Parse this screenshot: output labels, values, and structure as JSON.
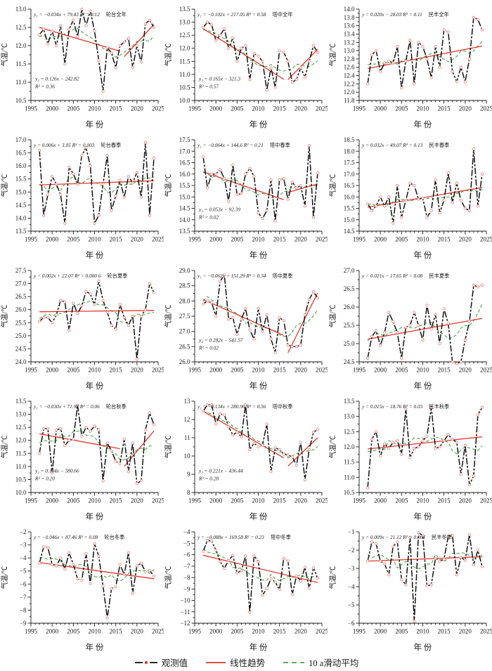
{
  "figure": {
    "xlabel": "年 份",
    "ylabel": "气温/℃",
    "xlim": [
      1995,
      2025
    ],
    "xtick_step": 5,
    "xtick_minor_step": 1,
    "year_start": 1997,
    "year_end": 2024
  },
  "legend": {
    "observed": "观测值",
    "trend": "线性趋势",
    "moving_avg": "10 a滑动平均"
  },
  "colors": {
    "observed": "#111111",
    "marker": "#ec8b85",
    "trend": "#e5352b",
    "moving_avg": "#46a546"
  },
  "chart_data": [
    {
      "type": "line",
      "title": "轮台全年",
      "station": "轮台全年",
      "equation": "y₁ = −0.034x + 79.43 R² = 0.12",
      "equation2": [
        "y₂ = 0.126x − 242.82",
        "R² = 0.36"
      ],
      "ylim": [
        10.5,
        13.0
      ],
      "ystep": 0.5,
      "ydec": 1,
      "values": [
        12.3,
        12.45,
        12.05,
        12.4,
        12.0,
        12.55,
        11.5,
        12.45,
        12.7,
        12.25,
        13.0,
        12.55,
        12.95,
        12.4,
        11.6,
        10.75,
        11.95,
        11.8,
        11.4,
        12.0,
        12.1,
        12.2,
        11.4,
        12.0,
        11.55,
        12.6,
        12.7,
        12.5
      ],
      "trend": [
        [
          1997,
          12.5,
          2016,
          11.85
        ],
        [
          2017,
          11.7,
          2024,
          12.58
        ]
      ]
    },
    {
      "type": "line",
      "title": "塔中全年",
      "station": "塔中全年",
      "equation": "y₁ = −0.102x + 217.05 R² = 0.58",
      "equation2": [
        "y₂ = 0.165x − 321.3",
        "R² = 0.57"
      ],
      "ylim": [
        10.0,
        13.5
      ],
      "ystep": 0.5,
      "ydec": 1,
      "values": [
        12.8,
        13.0,
        12.9,
        12.3,
        12.5,
        12.75,
        12.0,
        12.4,
        11.5,
        12.0,
        12.1,
        10.8,
        11.8,
        11.7,
        11.5,
        10.4,
        11.25,
        10.5,
        11.9,
        11.85,
        11.5,
        10.7,
        10.8,
        11.25,
        10.9,
        11.5,
        12.1,
        11.85
      ],
      "trend": [
        [
          1997,
          12.75,
          2016,
          10.81
        ],
        [
          2017,
          10.8,
          2024,
          11.96
        ]
      ]
    },
    {
      "type": "line",
      "title": "民丰全年",
      "station": "民丰全年",
      "equation": "y = 0.020x − 28.03 R² = 0.11",
      "equation2": null,
      "ylim": [
        11.8,
        14.0
      ],
      "ystep": 0.2,
      "ydec": 1,
      "values": [
        12.2,
        12.9,
        13.0,
        12.5,
        12.7,
        12.75,
        12.7,
        13.1,
        12.1,
        12.75,
        13.25,
        12.2,
        13.2,
        13.1,
        12.8,
        12.35,
        13.1,
        12.6,
        13.5,
        13.45,
        12.5,
        12.25,
        12.6,
        12.25,
        12.8,
        13.8,
        13.75,
        13.5
      ],
      "trend": [
        [
          1997,
          12.57,
          2024,
          13.11
        ]
      ]
    },
    {
      "type": "line",
      "title": "轮台春季",
      "station": "轮台春季",
      "equation": "y = 0.006x + 3.05 R² = 0.003",
      "equation2": null,
      "ylim": [
        13.5,
        17.0
      ],
      "ystep": 0.5,
      "ydec": 1,
      "values": [
        16.6,
        14.1,
        14.9,
        15.6,
        15.3,
        14.9,
        13.8,
        15.95,
        15.7,
        15.3,
        16.4,
        16.7,
        16.0,
        13.8,
        14.1,
        15.3,
        16.4,
        14.3,
        14.85,
        15.45,
        14.8,
        15.6,
        15.35,
        15.75,
        14.8,
        16.9,
        14.1,
        16.3
      ],
      "trend": [
        [
          1997,
          15.27,
          2024,
          15.43
        ]
      ]
    },
    {
      "type": "line",
      "title": "塔中春季",
      "station": "塔中春季",
      "equation": "y₁ = −0.064x + 144.6 R² = 0.21",
      "equation2": [
        "y₂ = 0.053x − 92.39",
        "R² = 0.02"
      ],
      "ylim": [
        13.5,
        17.5
      ],
      "ystep": 0.5,
      "ydec": 1,
      "values": [
        16.75,
        15.4,
        16.0,
        16.0,
        16.2,
        15.8,
        14.8,
        16.4,
        15.1,
        15.15,
        16.0,
        16.25,
        15.9,
        14.3,
        14.05,
        14.4,
        15.75,
        13.95,
        15.75,
        15.8,
        14.9,
        15.65,
        15.4,
        15.5,
        14.6,
        17.25,
        14.1,
        16.05
      ],
      "trend": [
        [
          1997,
          16.1,
          2016,
          14.88
        ],
        [
          2017,
          15.2,
          2024,
          15.57
        ]
      ]
    },
    {
      "type": "line",
      "title": "民丰春季",
      "station": "民丰春季",
      "equation": "y = 0.032x − 49.07 R² = 0.13",
      "equation2": null,
      "ylim": [
        14.5,
        18.5
      ],
      "ystep": 0.5,
      "ydec": 1,
      "values": [
        15.7,
        15.4,
        15.6,
        16.0,
        15.6,
        16.0,
        14.85,
        16.5,
        15.1,
        15.85,
        16.6,
        16.5,
        15.9,
        15.95,
        15.1,
        15.4,
        16.75,
        15.3,
        15.85,
        17.05,
        15.75,
        16.6,
        15.85,
        15.5,
        15.4,
        18.1,
        15.6,
        17.0
      ],
      "trend": [
        [
          1997,
          15.55,
          2024,
          16.41
        ]
      ]
    },
    {
      "type": "line",
      "title": "轮台夏季",
      "station": "轮台夏季",
      "equation": "y = 0.002x + 22.07 R² = 0.000 6",
      "equation2": null,
      "ylim": [
        24.0,
        27.5
      ],
      "ystep": 0.5,
      "ydec": 1,
      "values": [
        25.55,
        25.7,
        25.7,
        25.5,
        25.8,
        26.35,
        26.3,
        25.2,
        26.25,
        25.85,
        26.15,
        26.7,
        26.6,
        26.2,
        27.1,
        26.35,
        25.9,
        25.4,
        25.25,
        26.2,
        25.7,
        25.4,
        25.75,
        24.1,
        25.75,
        26.0,
        27.0,
        26.65
      ],
      "trend": [
        [
          1997,
          25.92,
          2024,
          25.97
        ]
      ]
    },
    {
      "type": "line",
      "title": "塔中夏季",
      "station": "塔中夏季",
      "equation": "y₁ = −0.062x + 151.29 R² = 0.34",
      "equation2": [
        "y₂ = 0.282x − 541.57",
        "R² = 0.02"
      ],
      "ylim": [
        26.0,
        29.0
      ],
      "ystep": 0.5,
      "ydec": 1,
      "values": [
        27.9,
        28.0,
        27.95,
        27.5,
        28.65,
        28.85,
        27.4,
        27.45,
        26.9,
        27.4,
        27.75,
        27.05,
        26.75,
        27.75,
        27.0,
        27.55,
        26.75,
        26.3,
        27.45,
        27.35,
        26.55,
        26.5,
        26.5,
        26.55,
        27.55,
        28.05,
        28.3,
        28.1
      ],
      "trend": [
        [
          1997,
          28.05,
          2016,
          26.87
        ],
        [
          2017,
          26.3,
          2024,
          28.27
        ]
      ]
    },
    {
      "type": "line",
      "title": "民丰夏季",
      "station": "民丰夏季",
      "equation": "y = 0.021x − 17.65 R² = 0.08",
      "equation2": null,
      "ylim": [
        24.5,
        27.0
      ],
      "ystep": 0.5,
      "ydec": 1,
      "values": [
        24.6,
        25.2,
        25.35,
        24.95,
        25.3,
        25.85,
        25.6,
        25.3,
        24.6,
        25.45,
        25.5,
        25.85,
        25.5,
        25.1,
        26.05,
        25.4,
        25.8,
        25.0,
        25.95,
        25.55,
        24.5,
        24.45,
        24.5,
        25.1,
        25.6,
        26.6,
        26.55,
        26.6
      ],
      "trend": [
        [
          1997,
          25.12,
          2024,
          25.69
        ]
      ]
    },
    {
      "type": "line",
      "title": "轮台秋季",
      "station": "轮台秋季",
      "equation": "y₁ = −0.030x + 71.98 R² = 0.06",
      "equation2": [
        "y₂ = 0.194x − 380.66",
        "R² = 0.20"
      ],
      "ylim": [
        10.0,
        13.5
      ],
      "ystep": 0.5,
      "ydec": 1,
      "values": [
        11.5,
        12.45,
        12.45,
        10.75,
        12.4,
        12.45,
        11.8,
        12.0,
        12.05,
        13.35,
        12.15,
        12.5,
        12.35,
        12.55,
        12.4,
        10.45,
        11.9,
        11.6,
        11.2,
        11.1,
        12.05,
        10.8,
        11.9,
        10.35,
        10.45,
        12.4,
        13.05,
        12.6
      ],
      "trend": [
        [
          1997,
          12.25,
          2016,
          11.68
        ],
        [
          2017,
          11.0,
          2024,
          12.36
        ]
      ]
    },
    {
      "type": "line",
      "title": "塔中秋季",
      "station": "塔中秋季",
      "equation": "y₁ = −0.134x + 280.96 R² = 0.56",
      "equation2": [
        "y₂ = 0.221x − 436.44",
        "R² = 0.28"
      ],
      "ylim": [
        8,
        13
      ],
      "ystep": 1,
      "ydec": 0,
      "values": [
        12.45,
        12.8,
        12.8,
        11.75,
        12.3,
        12.25,
        11.6,
        11.15,
        11.3,
        11.05,
        12.8,
        10.35,
        10.7,
        10.5,
        10.6,
        11.75,
        9.15,
        10.45,
        10.35,
        10.1,
        10.05,
        9.95,
        9.5,
        10.75,
        8.7,
        10.35,
        11.3,
        11.45
      ],
      "trend": [
        [
          1997,
          12.45,
          2016,
          9.9
        ],
        [
          2017,
          9.45,
          2024,
          11.0
        ]
      ]
    },
    {
      "type": "line",
      "title": "民丰秋季",
      "station": "民丰秋季",
      "equation": "y = 0.015x − 18.76 R² = 0.03",
      "equation2": null,
      "ylim": [
        10.5,
        13.5
      ],
      "ystep": 0.5,
      "ydec": 1,
      "values": [
        10.65,
        12.25,
        12.5,
        11.7,
        12.1,
        11.95,
        12.15,
        12.2,
        11.75,
        13.25,
        11.65,
        11.95,
        12.0,
        12.2,
        12.35,
        13.3,
        11.95,
        12.0,
        12.2,
        12.4,
        12.25,
        12.15,
        11.1,
        12.05,
        10.75,
        11.05,
        13.05,
        13.3
      ],
      "trend": [
        [
          1997,
          11.93,
          2024,
          12.33
        ]
      ]
    },
    {
      "type": "line",
      "title": "轮台冬季",
      "station": "轮台冬季",
      "equation": "y = −0.046x + 87.46 R² = 0.08",
      "equation2": null,
      "ylim": [
        -9,
        -2
      ],
      "ystep": 1,
      "ydec": 0,
      "values": [
        -4.4,
        -3.15,
        -3.2,
        -4.5,
        -4.6,
        -4.0,
        -4.85,
        -3.6,
        -4.5,
        -5.6,
        -5.7,
        -3.65,
        -5.95,
        -2.9,
        -3.85,
        -6.15,
        -8.6,
        -6.35,
        -6.2,
        -4.5,
        -5.25,
        -3.6,
        -6.7,
        -4.6,
        -4.4,
        -5.05,
        -4.95,
        -5.4
      ],
      "trend": [
        [
          1997,
          -4.35,
          2024,
          -5.59
        ]
      ]
    },
    {
      "type": "line",
      "title": "塔中冬季",
      "station": "塔中冬季",
      "equation": "y = −0.088x + 169.58 R² = 0.23",
      "equation2": null,
      "ylim": [
        -12,
        -4
      ],
      "ystep": 1,
      "ydec": 0,
      "values": [
        -5.7,
        -4.75,
        -4.8,
        -5.6,
        -6.6,
        -7.2,
        -6.5,
        -6.05,
        -7.6,
        -7.4,
        -6.1,
        -11.05,
        -6.1,
        -6.6,
        -9.55,
        -8.95,
        -8.1,
        -8.4,
        -9.05,
        -6.3,
        -6.55,
        -9.5,
        -7.85,
        -8.3,
        -7.1,
        -8.95,
        -7.15,
        -8.05
      ],
      "trend": [
        [
          1997,
          -6.05,
          2024,
          -8.43
        ]
      ]
    },
    {
      "type": "line",
      "title": "民丰冬季",
      "station": "民丰冬季",
      "equation": "y = 0.009x − 21.12 R² = 0.004",
      "equation2": null,
      "ylim": [
        -6,
        -1
      ],
      "ystep": 1,
      "ydec": 0,
      "values": [
        -2.6,
        -1.55,
        -1.65,
        -2.6,
        -2.75,
        -3.35,
        -1.8,
        -1.55,
        -3.6,
        -3.9,
        -1.3,
        -5.9,
        -1.05,
        -1.2,
        -3.95,
        -3.9,
        -2.45,
        -2.6,
        -2.5,
        -1.25,
        -1.2,
        -3.35,
        -2.4,
        -2.55,
        -1.15,
        -2.8,
        -2.0,
        -2.9
      ],
      "trend": [
        [
          1997,
          -2.6,
          2024,
          -2.36
        ]
      ]
    }
  ]
}
